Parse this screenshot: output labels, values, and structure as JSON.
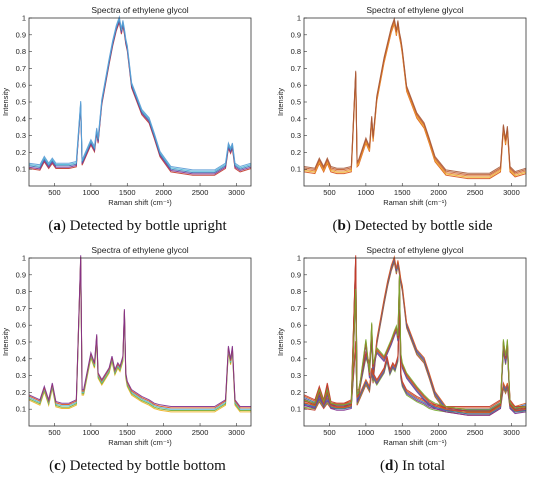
{
  "captions": [
    {
      "letter": "a",
      "text": "Detected by bottle upright"
    },
    {
      "letter": "b",
      "text": "Detected by bottle side"
    },
    {
      "letter": "c",
      "text": "Detected by bottle bottom"
    },
    {
      "letter": "d",
      "text": "In total"
    }
  ],
  "chart_data": [
    {
      "type": "line",
      "title": "Spectra of ethylene glycol",
      "xlabel": "Raman shift (cm⁻¹)",
      "ylabel": "Intensity",
      "xlim": [
        150,
        3200
      ],
      "ylim": [
        0,
        1
      ],
      "xticks": [
        "500",
        "1000",
        "1500",
        "2000",
        "2500",
        "3000"
      ],
      "yticks": [
        "0.1",
        "0.2",
        "0.3",
        "0.4",
        "0.5",
        "0.6",
        "0.7",
        "0.8",
        "0.9",
        "1"
      ],
      "colors": [
        "#c0392b",
        "#7e2f8e",
        "#3a6fb0",
        "#4db6d6",
        "#5b9bd5"
      ],
      "series": [
        {
          "x": [
            150,
            300,
            360,
            420,
            470,
            520,
            600,
            700,
            800,
            860,
            880,
            900,
            1000,
            1050,
            1080,
            1100,
            1150,
            1250,
            1300,
            1350,
            1390,
            1420,
            1440,
            1460,
            1480,
            1500,
            1560,
            1700,
            1800,
            1870,
            1950,
            2100,
            2400,
            2700,
            2850,
            2890,
            2920,
            2945,
            2980,
            3050,
            3200
          ],
          "y": [
            0.12,
            0.11,
            0.16,
            0.12,
            0.15,
            0.12,
            0.12,
            0.12,
            0.13,
            0.49,
            0.14,
            0.16,
            0.26,
            0.22,
            0.33,
            0.27,
            0.5,
            0.74,
            0.85,
            0.94,
            0.99,
            0.92,
            0.97,
            0.92,
            0.86,
            0.82,
            0.6,
            0.44,
            0.39,
            0.3,
            0.19,
            0.1,
            0.08,
            0.08,
            0.12,
            0.24,
            0.21,
            0.24,
            0.12,
            0.1,
            0.12
          ]
        }
      ]
    },
    {
      "type": "line",
      "title": "Spectra of ethylene glycol",
      "xlabel": "Raman shift (cm⁻¹)",
      "ylabel": "Intensity",
      "xlim": [
        150,
        3200
      ],
      "ylim": [
        0,
        1
      ],
      "xticks": [
        "500",
        "1000",
        "1500",
        "2000",
        "2500",
        "3000"
      ],
      "yticks": [
        "0.1",
        "0.2",
        "0.3",
        "0.4",
        "0.5",
        "0.6",
        "0.7",
        "0.8",
        "0.9",
        "1"
      ],
      "colors": [
        "#d95319",
        "#edb120",
        "#e0783a",
        "#c05a2a",
        "#a65a3a"
      ],
      "series": [
        {
          "x": [
            150,
            300,
            360,
            420,
            470,
            520,
            600,
            700,
            800,
            860,
            880,
            900,
            1000,
            1050,
            1080,
            1100,
            1150,
            1250,
            1300,
            1350,
            1390,
            1420,
            1440,
            1460,
            1480,
            1500,
            1560,
            1700,
            1800,
            1870,
            1950,
            2100,
            2400,
            2700,
            2850,
            2890,
            2920,
            2945,
            2980,
            3050,
            3200
          ],
          "y": [
            0.1,
            0.09,
            0.15,
            0.1,
            0.15,
            0.1,
            0.09,
            0.09,
            0.1,
            0.67,
            0.13,
            0.14,
            0.27,
            0.22,
            0.4,
            0.28,
            0.52,
            0.75,
            0.84,
            0.93,
            0.98,
            0.91,
            0.97,
            0.9,
            0.86,
            0.8,
            0.58,
            0.42,
            0.36,
            0.27,
            0.16,
            0.08,
            0.06,
            0.06,
            0.1,
            0.35,
            0.26,
            0.34,
            0.1,
            0.07,
            0.09
          ]
        }
      ]
    },
    {
      "type": "line",
      "title": "Spectra of ethylene glycol",
      "xlabel": "Raman shift (cm⁻¹)",
      "ylabel": "Intensity",
      "xlim": [
        150,
        3200
      ],
      "ylim": [
        0,
        1
      ],
      "xticks": [
        "500",
        "1000",
        "1500",
        "2000",
        "2500",
        "3000"
      ],
      "yticks": [
        "0.1",
        "0.2",
        "0.3",
        "0.4",
        "0.5",
        "0.6",
        "0.7",
        "0.8",
        "0.9",
        "1"
      ],
      "colors": [
        "#edb120",
        "#77ac30",
        "#4db6d6",
        "#d95319",
        "#7e2f8e"
      ],
      "series": [
        {
          "x": [
            150,
            300,
            360,
            420,
            470,
            520,
            600,
            700,
            800,
            860,
            880,
            900,
            1000,
            1050,
            1080,
            1100,
            1150,
            1250,
            1290,
            1330,
            1370,
            1400,
            1440,
            1460,
            1480,
            1500,
            1560,
            1700,
            1800,
            1870,
            1950,
            2100,
            2400,
            2700,
            2850,
            2890,
            2920,
            2945,
            2980,
            3050,
            3200
          ],
          "y": [
            0.17,
            0.14,
            0.22,
            0.14,
            0.24,
            0.13,
            0.12,
            0.12,
            0.14,
            1.0,
            0.2,
            0.2,
            0.42,
            0.36,
            0.53,
            0.3,
            0.26,
            0.33,
            0.4,
            0.32,
            0.36,
            0.34,
            0.4,
            0.68,
            0.3,
            0.25,
            0.2,
            0.16,
            0.14,
            0.12,
            0.11,
            0.1,
            0.1,
            0.1,
            0.14,
            0.46,
            0.38,
            0.46,
            0.14,
            0.1,
            0.1
          ]
        }
      ]
    },
    {
      "type": "line",
      "title": "Spectra of ethylene glycol",
      "xlabel": "Raman shift (cm⁻¹)",
      "ylabel": "Intensity",
      "xlim": [
        150,
        3200
      ],
      "ylim": [
        0,
        1
      ],
      "xticks": [
        "500",
        "1000",
        "1500",
        "2000",
        "2500",
        "3000"
      ],
      "yticks": [
        "0.1",
        "0.2",
        "0.3",
        "0.4",
        "0.5",
        "0.6",
        "0.7",
        "0.8",
        "0.9",
        "1"
      ],
      "colors": [
        "#c0392b",
        "#77ac30",
        "#7e2f8e",
        "#3a6fb0",
        "#d95319"
      ],
      "series": [
        {
          "x": [
            150,
            300,
            360,
            420,
            470,
            520,
            600,
            700,
            800,
            860,
            880,
            900,
            1000,
            1050,
            1080,
            1100,
            1150,
            1250,
            1300,
            1350,
            1390,
            1420,
            1440,
            1460,
            1480,
            1500,
            1560,
            1700,
            1800,
            1870,
            1950,
            2100,
            2400,
            2700,
            2850,
            2890,
            2920,
            2945,
            2980,
            3050,
            3200
          ],
          "y": [
            0.12,
            0.11,
            0.16,
            0.12,
            0.15,
            0.12,
            0.12,
            0.12,
            0.13,
            0.49,
            0.14,
            0.16,
            0.26,
            0.22,
            0.33,
            0.27,
            0.5,
            0.74,
            0.85,
            0.94,
            0.99,
            0.92,
            0.97,
            0.92,
            0.86,
            0.82,
            0.6,
            0.44,
            0.39,
            0.3,
            0.19,
            0.1,
            0.08,
            0.08,
            0.12,
            0.24,
            0.21,
            0.24,
            0.12,
            0.1,
            0.12
          ]
        },
        {
          "x": [
            150,
            300,
            360,
            420,
            470,
            520,
            600,
            700,
            800,
            860,
            880,
            900,
            1000,
            1050,
            1080,
            1100,
            1150,
            1250,
            1290,
            1330,
            1370,
            1400,
            1440,
            1460,
            1480,
            1500,
            1560,
            1700,
            1800,
            1870,
            1950,
            2100,
            2400,
            2700,
            2850,
            2890,
            2920,
            2945,
            2980,
            3050,
            3200
          ],
          "y": [
            0.17,
            0.14,
            0.22,
            0.14,
            0.24,
            0.13,
            0.12,
            0.12,
            0.14,
            1.0,
            0.2,
            0.2,
            0.42,
            0.36,
            0.53,
            0.3,
            0.26,
            0.33,
            0.4,
            0.32,
            0.36,
            0.34,
            0.4,
            0.68,
            0.3,
            0.25,
            0.2,
            0.16,
            0.14,
            0.12,
            0.11,
            0.1,
            0.1,
            0.1,
            0.14,
            0.46,
            0.38,
            0.46,
            0.14,
            0.1,
            0.1
          ]
        },
        {
          "x": [
            150,
            300,
            360,
            420,
            470,
            520,
            600,
            700,
            800,
            860,
            880,
            900,
            1000,
            1050,
            1080,
            1100,
            1150,
            1250,
            1300,
            1350,
            1390,
            1420,
            1440,
            1460,
            1480,
            1500,
            1560,
            1700,
            1800,
            1870,
            1950,
            2100,
            2400,
            2700,
            2850,
            2890,
            2920,
            2945,
            2980,
            3050,
            3200
          ],
          "y": [
            0.14,
            0.12,
            0.2,
            0.13,
            0.2,
            0.12,
            0.11,
            0.11,
            0.12,
            0.8,
            0.17,
            0.18,
            0.5,
            0.3,
            0.6,
            0.35,
            0.45,
            0.4,
            0.45,
            0.5,
            0.55,
            0.58,
            0.52,
            0.88,
            0.42,
            0.36,
            0.3,
            0.22,
            0.17,
            0.14,
            0.12,
            0.1,
            0.08,
            0.08,
            0.12,
            0.5,
            0.4,
            0.5,
            0.12,
            0.09,
            0.1
          ]
        }
      ]
    }
  ]
}
